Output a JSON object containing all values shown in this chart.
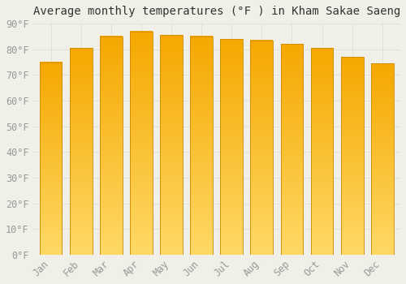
{
  "title": "Average monthly temperatures (°F ) in Kham Sakae Saeng",
  "months": [
    "Jan",
    "Feb",
    "Mar",
    "Apr",
    "May",
    "Jun",
    "Jul",
    "Aug",
    "Sep",
    "Oct",
    "Nov",
    "Dec"
  ],
  "values": [
    75,
    80.5,
    85,
    87,
    85.5,
    85,
    84,
    83.5,
    82,
    80.5,
    77,
    74.5
  ],
  "grad_top": "#F5A800",
  "grad_bottom": "#FFD966",
  "ylim": [
    0,
    90
  ],
  "yticks": [
    0,
    10,
    20,
    30,
    40,
    50,
    60,
    70,
    80,
    90
  ],
  "ytick_labels": [
    "0°F",
    "10°F",
    "20°F",
    "30°F",
    "40°F",
    "50°F",
    "60°F",
    "70°F",
    "80°F",
    "90°F"
  ],
  "background_color": "#f0f0e8",
  "grid_color": "#dddddd",
  "bar_edge_color": "#cc8800",
  "title_fontsize": 10,
  "tick_fontsize": 8.5,
  "bar_width": 0.75
}
